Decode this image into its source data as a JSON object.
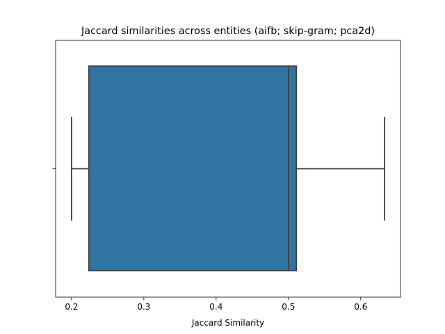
{
  "chart_data": {
    "type": "box",
    "title": "Jaccard similarities across entities (aifb; skip-gram; pca2d)",
    "xlabel": "Jaccard Similarity",
    "ylabel": "",
    "orientation": "horizontal",
    "xlim": [
      0.178,
      0.655
    ],
    "xticks": [
      0.2,
      0.3,
      0.4,
      0.5,
      0.6
    ],
    "xtick_labels": [
      "0.2",
      "0.3",
      "0.4",
      "0.5",
      "0.6"
    ],
    "yticks": [
      ""
    ],
    "grid": false,
    "box": {
      "whisker_low": 0.2,
      "q1": 0.224,
      "median": 0.5,
      "q3": 0.511,
      "whisker_high": 0.633
    },
    "colors": {
      "box_fill": "#3274a1",
      "line": "#3d3d3d",
      "axes": "#000000"
    }
  }
}
